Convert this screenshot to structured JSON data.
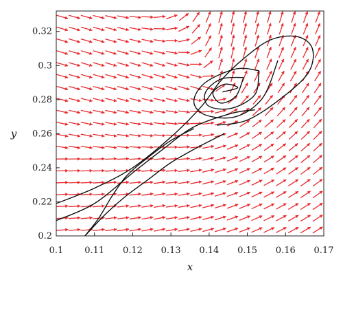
{
  "chart_data": {
    "type": "vector_field_phase_portrait",
    "xlabel": "x",
    "ylabel": "y",
    "xlim": [
      0.1,
      0.17
    ],
    "ylim": [
      0.2,
      0.332
    ],
    "x_ticks": [
      0.1,
      0.11,
      0.12,
      0.13,
      0.14,
      0.15,
      0.16,
      0.17
    ],
    "x_tick_labels": [
      "0.1",
      "0.11",
      "0.12",
      "0.13",
      "0.14",
      "0.15",
      "0.16",
      "0.17"
    ],
    "y_ticks": [
      0.2,
      0.22,
      0.24,
      0.26,
      0.28,
      0.3,
      0.32
    ],
    "y_tick_labels": [
      "0.2",
      "0.22",
      "0.24",
      "0.26",
      "0.28",
      "0.3",
      "0.32"
    ],
    "equilibria": [
      {
        "kind": "stable-focus",
        "x": 0.1435,
        "y": 0.2845
      },
      {
        "kind": "saddle",
        "x": 0.1185,
        "y": 0.2355
      }
    ],
    "vector_field": {
      "color": "#e8282c",
      "grid_nx": 22,
      "grid_ny": 19,
      "arrow_length": 0.0031
    },
    "trajectories": [
      {
        "name": "outer-orbit",
        "points": [
          [
            0.1,
            0.219
          ],
          [
            0.11,
            0.228
          ],
          [
            0.12,
            0.24
          ],
          [
            0.13,
            0.258
          ],
          [
            0.138,
            0.276
          ],
          [
            0.143,
            0.291
          ],
          [
            0.149,
            0.304
          ],
          [
            0.156,
            0.315
          ],
          [
            0.163,
            0.317
          ],
          [
            0.167,
            0.31
          ],
          [
            0.166,
            0.296
          ],
          [
            0.159,
            0.281
          ],
          [
            0.15,
            0.268
          ],
          [
            0.142,
            0.265
          ]
        ]
      },
      {
        "name": "inner-spiral-1",
        "points": [
          [
            0.158,
            0.303
          ],
          [
            0.154,
            0.281
          ],
          [
            0.147,
            0.27
          ],
          [
            0.139,
            0.271
          ],
          [
            0.136,
            0.279
          ],
          [
            0.139,
            0.29
          ],
          [
            0.147,
            0.298
          ],
          [
            0.153,
            0.297
          ]
        ]
      },
      {
        "name": "inner-spiral-2",
        "points": [
          [
            0.153,
            0.297
          ],
          [
            0.152,
            0.283
          ],
          [
            0.146,
            0.275
          ],
          [
            0.14,
            0.276
          ],
          [
            0.139,
            0.284
          ],
          [
            0.143,
            0.292
          ],
          [
            0.149,
            0.293
          ]
        ]
      },
      {
        "name": "inner-spiral-3",
        "points": [
          [
            0.149,
            0.293
          ],
          [
            0.147,
            0.282
          ],
          [
            0.143,
            0.278
          ],
          [
            0.141,
            0.284
          ],
          [
            0.144,
            0.289
          ],
          [
            0.1475,
            0.287
          ],
          [
            0.1435,
            0.2845
          ]
        ]
      },
      {
        "name": "lower-orbit",
        "points": [
          [
            0.1,
            0.209
          ],
          [
            0.11,
            0.219
          ],
          [
            0.12,
            0.237
          ],
          [
            0.128,
            0.251
          ],
          [
            0.136,
            0.264
          ],
          [
            0.146,
            0.272
          ],
          [
            0.152,
            0.274
          ]
        ]
      },
      {
        "name": "saddle-path",
        "points": [
          [
            0.1075,
            0.2
          ],
          [
            0.111,
            0.21
          ],
          [
            0.1145,
            0.223
          ],
          [
            0.1185,
            0.2355
          ],
          [
            0.124,
            0.246
          ],
          [
            0.13,
            0.256
          ],
          [
            0.136,
            0.263
          ]
        ]
      },
      {
        "name": "saddle-branch",
        "points": [
          [
            0.1075,
            0.2
          ],
          [
            0.113,
            0.213
          ],
          [
            0.118,
            0.223
          ],
          [
            0.124,
            0.233
          ],
          [
            0.13,
            0.243
          ],
          [
            0.137,
            0.252
          ],
          [
            0.144,
            0.26
          ]
        ]
      }
    ]
  }
}
